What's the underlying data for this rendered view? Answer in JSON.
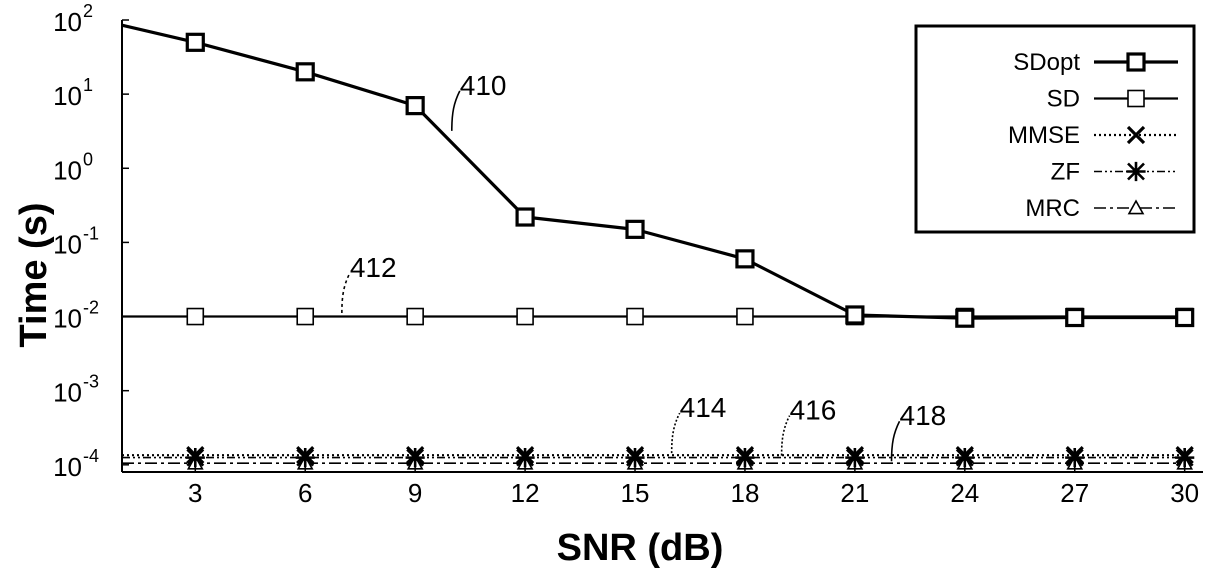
{
  "chart_data": {
    "type": "line",
    "xlabel": "SNR (dB)",
    "ylabel": "Time (s)",
    "yscale": "log",
    "xlim": [
      1,
      30.5
    ],
    "ylim": [
      8e-05,
      100
    ],
    "xticks": [
      3,
      6,
      9,
      12,
      15,
      18,
      21,
      24,
      27,
      30
    ],
    "yticks": [
      {
        "value": 100,
        "base": "10",
        "exp": "2"
      },
      {
        "value": 10,
        "base": "10",
        "exp": "1"
      },
      {
        "value": 1,
        "base": "10",
        "exp": "0"
      },
      {
        "value": 0.1,
        "base": "10",
        "exp": "-1"
      },
      {
        "value": 0.01,
        "base": "10",
        "exp": "-2"
      },
      {
        "value": 0.001,
        "base": "10",
        "exp": "-3"
      },
      {
        "value": 0.0001,
        "base": "10",
        "exp": "-4"
      }
    ],
    "grid": false,
    "legend_position": "top-right",
    "series": [
      {
        "name": "SDopt",
        "marker": "square",
        "line": "solid-thick",
        "x": [
          1,
          3,
          6,
          9,
          12,
          15,
          18,
          21,
          24,
          27,
          30
        ],
        "y": [
          85,
          50,
          20,
          7,
          0.22,
          0.15,
          0.06,
          0.0105,
          0.0095,
          0.0097,
          0.0097
        ]
      },
      {
        "name": "SD",
        "marker": "square",
        "line": "solid-thin",
        "x": [
          1,
          3,
          6,
          9,
          12,
          15,
          18,
          21,
          24,
          27,
          30
        ],
        "y": [
          0.01,
          0.01,
          0.01,
          0.01,
          0.01,
          0.01,
          0.01,
          0.01,
          0.01,
          0.01,
          0.01
        ]
      },
      {
        "name": "MMSE",
        "marker": "x",
        "line": "dotted",
        "x": [
          1,
          3,
          6,
          9,
          12,
          15,
          18,
          21,
          24,
          27,
          30
        ],
        "y": [
          0.000135,
          0.000135,
          0.000135,
          0.000135,
          0.000135,
          0.000135,
          0.000135,
          0.000135,
          0.000135,
          0.000135,
          0.000135
        ]
      },
      {
        "name": "ZF",
        "marker": "asterisk",
        "line": "dash-dot-dot",
        "x": [
          1,
          3,
          6,
          9,
          12,
          15,
          18,
          21,
          24,
          27,
          30
        ],
        "y": [
          0.000125,
          0.000125,
          0.000125,
          0.000125,
          0.000125,
          0.000125,
          0.000125,
          0.000125,
          0.000125,
          0.000125,
          0.000125
        ]
      },
      {
        "name": "MRC",
        "marker": "triangle",
        "line": "dash-dot",
        "x": [
          1,
          3,
          6,
          9,
          12,
          15,
          18,
          21,
          24,
          27,
          30
        ],
        "y": [
          0.000105,
          0.000105,
          0.000105,
          0.000105,
          0.000105,
          0.000105,
          0.000105,
          0.000105,
          0.000105,
          0.000105,
          0.000105
        ]
      }
    ],
    "annotations": [
      {
        "text": "410",
        "x": 10,
        "y": 3.0
      },
      {
        "text": "412",
        "x": 7,
        "y": 0.0105
      },
      {
        "text": "414",
        "x": 16,
        "y": 0.000135
      },
      {
        "text": "416",
        "x": 19,
        "y": 0.000125
      },
      {
        "text": "418",
        "x": 22,
        "y": 0.000105
      }
    ]
  }
}
